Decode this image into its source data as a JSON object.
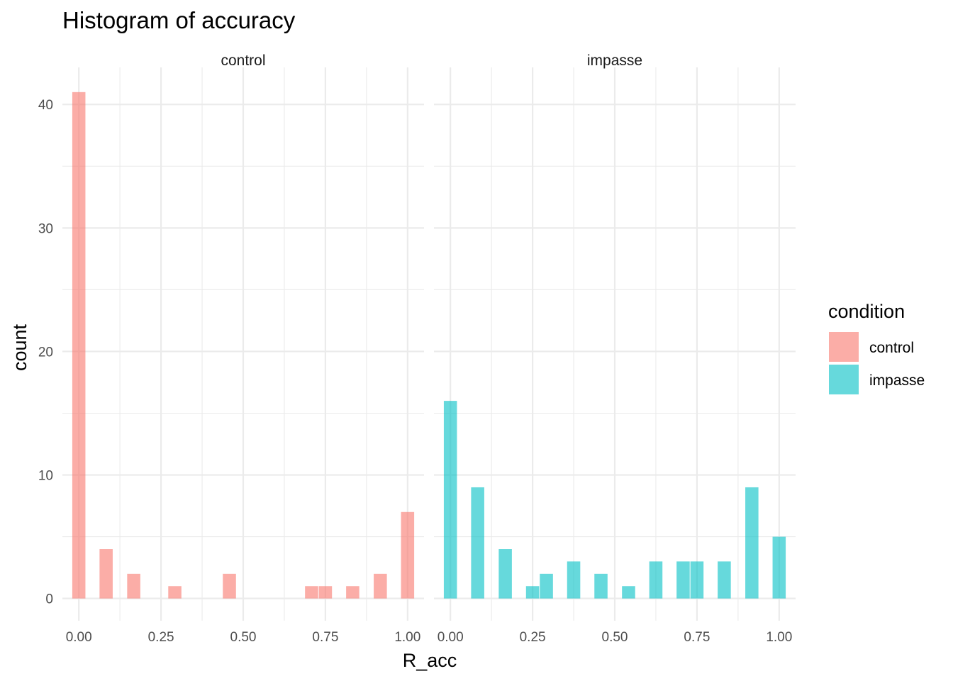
{
  "chart_data": {
    "type": "bar",
    "title": "Histogram of accuracy",
    "xlabel": "R_acc",
    "ylabel": "count",
    "xlim": [
      -0.05,
      1.05
    ],
    "ylim": [
      -1.8,
      43
    ],
    "x_ticks": [
      "0.00",
      "0.25",
      "0.50",
      "0.75",
      "1.00"
    ],
    "x_tick_values": [
      0,
      0.25,
      0.5,
      0.75,
      1.0
    ],
    "y_ticks": [
      "0",
      "10",
      "20",
      "30",
      "40"
    ],
    "y_tick_values": [
      0,
      10,
      20,
      30,
      40
    ],
    "bin_width": 0.04,
    "grid": true,
    "legend": {
      "title": "condition",
      "position": "right",
      "entries": [
        {
          "label": "control",
          "color": "#F8766D"
        },
        {
          "label": "impasse",
          "color": "#00BFC4"
        }
      ]
    },
    "panels": [
      {
        "strip": "control",
        "color": "#F8766D",
        "bins": [
          {
            "x": 0.0,
            "count": 41
          },
          {
            "x": 0.083,
            "count": 4
          },
          {
            "x": 0.167,
            "count": 2
          },
          {
            "x": 0.292,
            "count": 1
          },
          {
            "x": 0.458,
            "count": 2
          },
          {
            "x": 0.708,
            "count": 1
          },
          {
            "x": 0.75,
            "count": 1
          },
          {
            "x": 0.833,
            "count": 1
          },
          {
            "x": 0.917,
            "count": 2
          },
          {
            "x": 1.0,
            "count": 7
          }
        ]
      },
      {
        "strip": "impasse",
        "color": "#00BFC4",
        "bins": [
          {
            "x": 0.0,
            "count": 16
          },
          {
            "x": 0.083,
            "count": 9
          },
          {
            "x": 0.167,
            "count": 4
          },
          {
            "x": 0.25,
            "count": 1
          },
          {
            "x": 0.292,
            "count": 2
          },
          {
            "x": 0.375,
            "count": 3
          },
          {
            "x": 0.458,
            "count": 2
          },
          {
            "x": 0.542,
            "count": 1
          },
          {
            "x": 0.625,
            "count": 3
          },
          {
            "x": 0.708,
            "count": 3
          },
          {
            "x": 0.75,
            "count": 3
          },
          {
            "x": 0.833,
            "count": 3
          },
          {
            "x": 0.917,
            "count": 9
          },
          {
            "x": 1.0,
            "count": 5
          }
        ]
      }
    ]
  }
}
